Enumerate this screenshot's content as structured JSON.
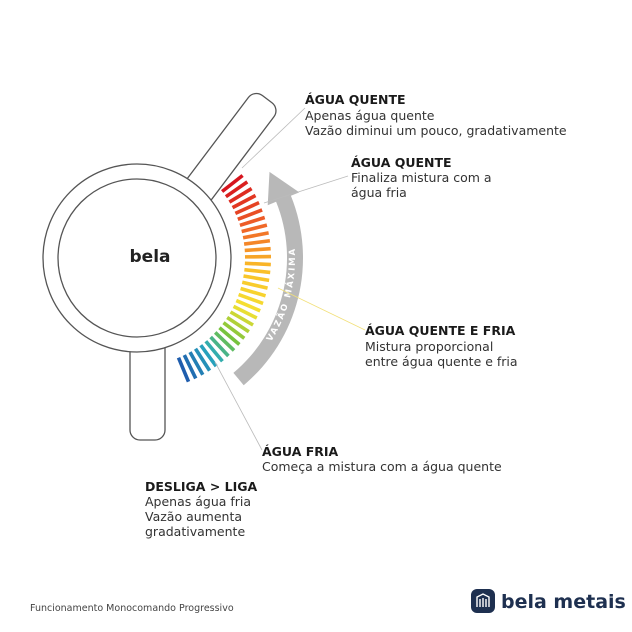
{
  "knob_label": "bela",
  "arrow_label": "VAZÃO MÁXIMA",
  "labels": [
    {
      "title": "ÁGUA QUENTE",
      "lines": [
        "Apenas água quente",
        "Vazão diminui um pouco, gradativamente"
      ]
    },
    {
      "title": "ÁGUA QUENTE",
      "lines": [
        "Finaliza mistura com a",
        "água fria"
      ]
    },
    {
      "title": "ÁGUA QUENTE E FRIA",
      "lines": [
        "Mistura proporcional",
        "entre água quente e fria"
      ]
    },
    {
      "title": "ÁGUA FRIA",
      "lines": [
        "Começa a mistura com a água quente"
      ]
    },
    {
      "title": "DESLIGA > LIGA",
      "lines": [
        "Apenas água fria",
        "Vazão aumenta",
        "gradativamente"
      ]
    }
  ],
  "footer": {
    "caption": "Funcionamento Monocomando Progressivo",
    "logo": "bela metais"
  }
}
